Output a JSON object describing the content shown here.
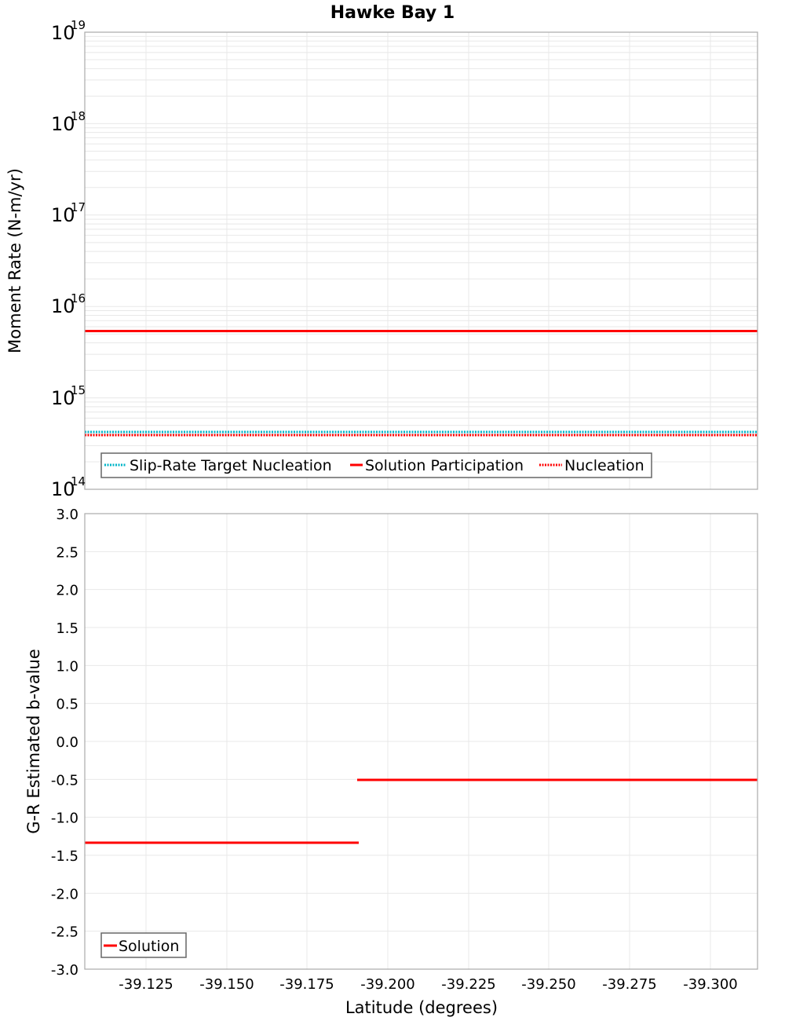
{
  "title": "Hawke Bay 1",
  "colors": {
    "solution": "#ff0000",
    "target": "#00b5c8",
    "nucleation": "#ff0000",
    "grid": "#e8e8e8",
    "frame": "#aaaaaa"
  },
  "top": {
    "ylabel": "Moment Rate (N-m/yr)",
    "yticks": [
      {
        "base": "10",
        "exp": "19"
      },
      {
        "base": "10",
        "exp": "18"
      },
      {
        "base": "10",
        "exp": "17"
      },
      {
        "base": "10",
        "exp": "16"
      },
      {
        "base": "10",
        "exp": "15"
      },
      {
        "base": "10",
        "exp": "14"
      }
    ],
    "legend": [
      {
        "label": "Slip-Rate Target Nucleation"
      },
      {
        "label": "Solution Participation"
      },
      {
        "label": "Nucleation"
      }
    ]
  },
  "bottom": {
    "ylabel": "G-R Estimated b-value",
    "yticks": [
      "3.0",
      "2.5",
      "2.0",
      "1.5",
      "1.0",
      "0.5",
      "0.0",
      "-0.5",
      "-1.0",
      "-1.5",
      "-2.0",
      "-2.5",
      "-3.0"
    ],
    "legend": [
      {
        "label": "Solution"
      }
    ]
  },
  "xlabel": "Latitude (degrees)",
  "xticks": [
    "-39.125",
    "-39.150",
    "-39.175",
    "-39.200",
    "-39.225",
    "-39.250",
    "-39.275",
    "-39.300"
  ],
  "chart_data": [
    {
      "type": "line",
      "title": "Hawke Bay 1",
      "xlabel": "Latitude (degrees)",
      "ylabel": "Moment Rate (N-m/yr)",
      "yscale": "log",
      "ylim": [
        100000000000000.0,
        1e+19
      ],
      "xlim": [
        -39.106,
        -39.315
      ],
      "grid": true,
      "legend_position": "lower-left",
      "series": [
        {
          "name": "Slip-Rate Target Nucleation",
          "style": "dotted",
          "color": "#00b5c8",
          "x": [
            -39.106,
            -39.191,
            -39.315
          ],
          "y": [
            420000000000000.0,
            420000000000000.0,
            420000000000000.0
          ]
        },
        {
          "name": "Solution Participation",
          "style": "solid",
          "color": "#ff0000",
          "x": [
            -39.106,
            -39.191,
            -39.315
          ],
          "y": [
            5400000000000000.0,
            5400000000000000.0,
            5400000000000000.0
          ]
        },
        {
          "name": "Nucleation",
          "style": "dotted",
          "color": "#ff0000",
          "x": [
            -39.106,
            -39.191,
            -39.315
          ],
          "y": [
            390000000000000.0,
            390000000000000.0,
            390000000000000.0
          ]
        }
      ]
    },
    {
      "type": "line",
      "xlabel": "Latitude (degrees)",
      "ylabel": "G-R Estimated b-value",
      "ylim": [
        -3.0,
        3.0
      ],
      "xlim": [
        -39.106,
        -39.315
      ],
      "xticks": [
        -39.125,
        -39.15,
        -39.175,
        -39.2,
        -39.225,
        -39.25,
        -39.275,
        -39.3
      ],
      "grid": true,
      "legend_position": "lower-left",
      "series": [
        {
          "name": "Solution",
          "style": "solid",
          "color": "#ff0000",
          "segments": [
            {
              "x": [
                -39.106,
                -39.191
              ],
              "y": [
                -1.33,
                -1.33
              ]
            },
            {
              "x": [
                -39.191,
                -39.315
              ],
              "y": [
                -0.5,
                -0.5
              ]
            }
          ]
        }
      ]
    }
  ]
}
